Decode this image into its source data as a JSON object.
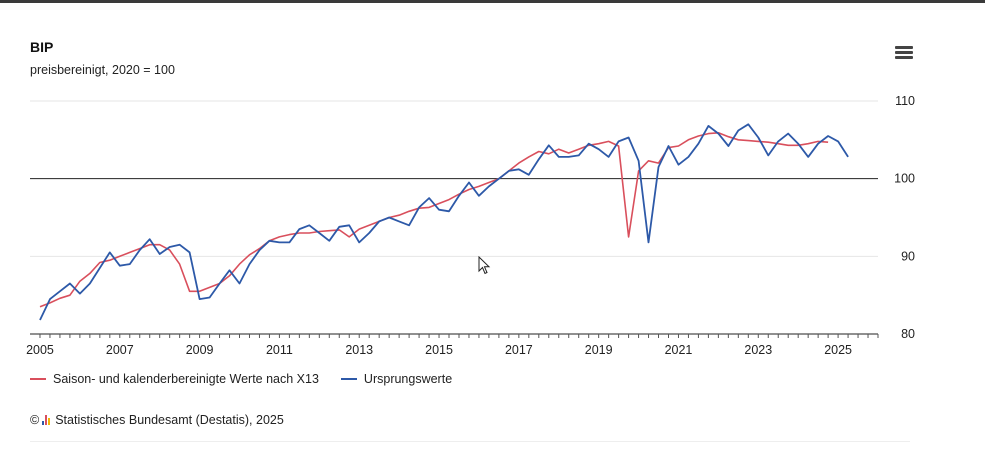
{
  "header": {
    "title": "BIP",
    "subtitle": "preisbereinigt, 2020 = 100"
  },
  "legend": {
    "items": [
      {
        "label": "Saison- und kalenderbereinigte Werte nach X13",
        "color": "#d94f5c"
      },
      {
        "label": "Ursprungswerte",
        "color": "#2d59a8"
      }
    ]
  },
  "footer": {
    "copyright_symbol": "©",
    "credit": "Statistisches Bundesamt (Destatis), 2025",
    "logo_colors": [
      "#2d59a8",
      "#d94f5c",
      "#f2b705"
    ]
  },
  "icons": {
    "menu": "hamburger-menu-icon"
  },
  "chart_data": {
    "type": "line",
    "title": "BIP",
    "subtitle": "preisbereinigt, 2020 = 100",
    "x_start": 2005.0,
    "x_step": 0.25,
    "xlim": [
      2004.75,
      2026.0
    ],
    "ylim": [
      80,
      110
    ],
    "y_ticks": [
      80,
      90,
      100,
      110
    ],
    "x_ticks": [
      2005,
      2007,
      2009,
      2011,
      2013,
      2015,
      2017,
      2019,
      2021,
      2023,
      2025
    ],
    "reference_line": 100,
    "grid": true,
    "legend_position": "bottom-left",
    "series": [
      {
        "name": "Saison- und kalenderbereinigte Werte nach X13",
        "color": "#d94f5c",
        "values": [
          83.5,
          84.0,
          84.6,
          85.0,
          86.8,
          87.8,
          89.2,
          89.5,
          90.0,
          90.5,
          91.0,
          91.5,
          91.5,
          90.8,
          89.0,
          85.5,
          85.5,
          86.0,
          86.5,
          87.5,
          89.0,
          90.2,
          91.0,
          92.0,
          92.5,
          92.8,
          93.0,
          93.0,
          93.2,
          93.3,
          93.4,
          92.5,
          93.5,
          94.0,
          94.5,
          95.0,
          95.3,
          95.8,
          96.2,
          96.3,
          96.8,
          97.3,
          98.0,
          98.6,
          99.0,
          99.5,
          100.0,
          101.0,
          102.0,
          102.8,
          103.5,
          103.2,
          103.8,
          103.3,
          103.8,
          104.3,
          104.5,
          104.8,
          104.2,
          92.5,
          101.0,
          102.3,
          102.0,
          104.0,
          104.2,
          105.0,
          105.5,
          105.8,
          105.9,
          105.4,
          105.0,
          104.9,
          104.8,
          104.7,
          104.5,
          104.3,
          104.3,
          104.5,
          104.8,
          104.7
        ]
      },
      {
        "name": "Ursprungswerte",
        "color": "#2d59a8",
        "values": [
          81.8,
          84.5,
          85.5,
          86.5,
          85.2,
          86.5,
          88.5,
          90.5,
          88.8,
          89.0,
          90.8,
          92.2,
          90.3,
          91.2,
          91.5,
          90.5,
          84.5,
          84.7,
          86.5,
          88.2,
          86.5,
          89.0,
          90.8,
          92.0,
          91.8,
          91.8,
          93.5,
          94.0,
          93.0,
          92.0,
          93.8,
          94.0,
          91.8,
          93.0,
          94.5,
          95.0,
          94.5,
          94.0,
          96.3,
          97.5,
          96.0,
          95.8,
          97.8,
          99.5,
          97.8,
          99.0,
          100.0,
          101.0,
          101.2,
          100.5,
          102.5,
          104.3,
          102.8,
          102.8,
          103.0,
          104.5,
          103.8,
          102.8,
          104.8,
          105.3,
          102.3,
          91.8,
          101.5,
          104.2,
          101.8,
          102.8,
          104.5,
          106.8,
          105.8,
          104.2,
          106.2,
          107.0,
          105.3,
          103.0,
          104.8,
          105.8,
          104.5,
          102.8,
          104.5,
          105.5,
          104.8,
          102.8
        ]
      }
    ]
  }
}
